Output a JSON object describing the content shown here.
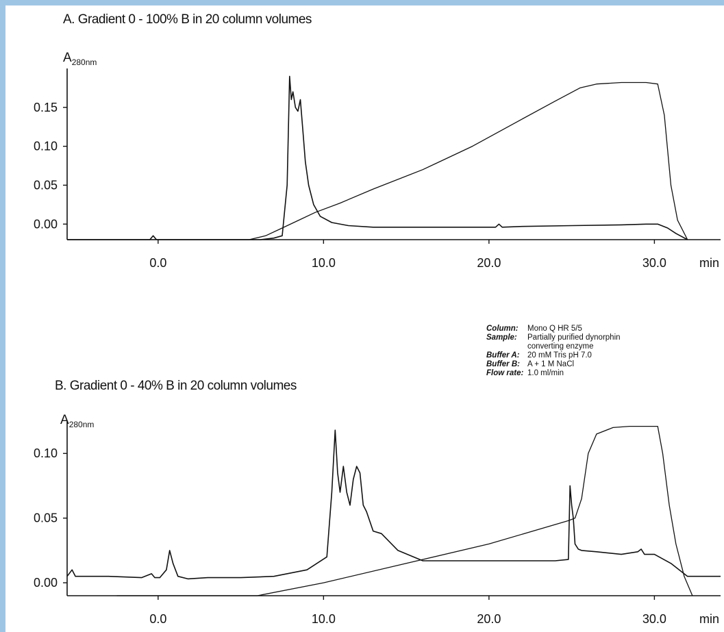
{
  "chart_data": [
    {
      "type": "line",
      "title": "A. Gradient 0 - 100% B in 20 column volumes",
      "ylabel": "A",
      "ylabel_sub": "280nm",
      "xlabel": "min",
      "xlim": [
        -5.5,
        34
      ],
      "ylim": [
        -0.02,
        0.2
      ],
      "xticks": [
        0,
        10,
        20,
        30
      ],
      "xtick_labels": [
        "0.0",
        "10.0",
        "20.0",
        "30.0"
      ],
      "yticks": [
        0.0,
        0.05,
        0.1,
        0.15
      ],
      "ytick_labels": [
        "0.00",
        "0.05",
        "0.10",
        "0.15"
      ],
      "grid": false,
      "series": [
        {
          "x": [
            -5.5,
            -0.5,
            -0.3,
            -0.1,
            0.3,
            1,
            4,
            6.2,
            7,
            7.5,
            7.8,
            7.95,
            8.05,
            8.15,
            8.3,
            8.45,
            8.6,
            8.75,
            8.9,
            9.1,
            9.4,
            9.8,
            10.5,
            11.5,
            13,
            16,
            19,
            20.4,
            20.6,
            20.8,
            22,
            25,
            28,
            29.5,
            30.2,
            30.8,
            31.3,
            32
          ],
          "y": [
            -0.02,
            -0.02,
            -0.015,
            -0.02,
            -0.02,
            -0.02,
            -0.02,
            -0.02,
            -0.018,
            -0.015,
            0.05,
            0.19,
            0.16,
            0.17,
            0.15,
            0.145,
            0.16,
            0.12,
            0.08,
            0.05,
            0.025,
            0.01,
            0.002,
            -0.002,
            -0.004,
            -0.004,
            -0.004,
            -0.004,
            0.0,
            -0.004,
            -0.003,
            -0.002,
            -0.001,
            0.0,
            0.0,
            -0.005,
            -0.012,
            -0.02
          ],
          "style": "solid"
        },
        {
          "x": [
            -5.5,
            0,
            5.5,
            6.5,
            7.5,
            8.5,
            9.5,
            11,
            13,
            16,
            19,
            22,
            24,
            25.5,
            26.5,
            28,
            29.5,
            30.2,
            30.6,
            31,
            31.4,
            32
          ],
          "y": [
            -0.02,
            -0.02,
            -0.02,
            -0.015,
            -0.005,
            0.005,
            0.015,
            0.027,
            0.045,
            0.07,
            0.1,
            0.135,
            0.158,
            0.175,
            0.18,
            0.182,
            0.182,
            0.18,
            0.14,
            0.05,
            0.005,
            -0.02
          ],
          "style": "solid"
        }
      ]
    },
    {
      "type": "line",
      "title": "B. Gradient 0 - 40% B in 20 column volumes",
      "ylabel": "A",
      "ylabel_sub": "280nm",
      "xlabel": "min",
      "xlim": [
        -5.5,
        34
      ],
      "ylim": [
        -0.01,
        0.125
      ],
      "xticks": [
        0,
        10,
        20,
        30
      ],
      "xtick_labels": [
        "0.0",
        "10.0",
        "20.0",
        "30.0"
      ],
      "yticks": [
        0.0,
        0.05,
        0.1
      ],
      "ytick_labels": [
        "0.00",
        "0.05",
        "0.10"
      ],
      "grid": false,
      "series": [
        {
          "x": [
            -5.5,
            -5.2,
            -5.0,
            -4.6,
            -3,
            -1,
            -0.4,
            -0.2,
            0.1,
            0.5,
            0.7,
            0.9,
            1.2,
            1.8,
            3,
            5,
            7,
            9,
            10.2,
            10.5,
            10.7,
            10.85,
            11.0,
            11.2,
            11.4,
            11.6,
            11.8,
            12.0,
            12.2,
            12.4,
            12.6,
            13.0,
            13.5,
            14.5,
            16,
            18,
            20,
            22,
            24,
            24.8,
            24.9,
            25.0,
            25.1,
            25.2,
            25.4,
            25.6,
            26.5,
            28,
            29,
            29.2,
            29.4,
            30,
            31,
            32,
            34
          ],
          "y": [
            0.005,
            0.01,
            0.005,
            0.005,
            0.005,
            0.004,
            0.007,
            0.004,
            0.004,
            0.01,
            0.025,
            0.015,
            0.005,
            0.003,
            0.004,
            0.004,
            0.005,
            0.01,
            0.02,
            0.07,
            0.118,
            0.085,
            0.07,
            0.09,
            0.07,
            0.06,
            0.08,
            0.09,
            0.085,
            0.06,
            0.055,
            0.04,
            0.038,
            0.025,
            0.017,
            0.017,
            0.017,
            0.017,
            0.017,
            0.018,
            0.075,
            0.06,
            0.05,
            0.03,
            0.026,
            0.025,
            0.024,
            0.022,
            0.024,
            0.026,
            0.022,
            0.022,
            0.015,
            0.005,
            0.005
          ],
          "style": "solid"
        },
        {
          "x": [
            -2.5,
            6,
            10,
            15,
            20,
            24.8,
            25.2,
            25.6,
            26.0,
            26.5,
            27.5,
            28.5,
            29.5,
            30.2,
            30.5,
            30.9,
            31.3,
            31.8,
            32.3
          ],
          "y": [
            -0.01,
            -0.01,
            0.0,
            0.015,
            0.03,
            0.048,
            0.05,
            0.065,
            0.1,
            0.115,
            0.12,
            0.121,
            0.121,
            0.121,
            0.1,
            0.06,
            0.03,
            0.005,
            -0.01
          ],
          "style": "solid"
        }
      ]
    }
  ],
  "conditions": [
    {
      "key": "Column:",
      "value": "Mono Q HR 5/5"
    },
    {
      "key": "Sample:",
      "value": "Partially purified dynorphin converting enzyme"
    },
    {
      "key": "Buffer A:",
      "value": "20 mM Tris pH 7.0"
    },
    {
      "key": "Buffer B:",
      "value": "A + 1 M NaCl"
    },
    {
      "key": "Flow rate:",
      "value": "1.0 ml/min"
    }
  ]
}
